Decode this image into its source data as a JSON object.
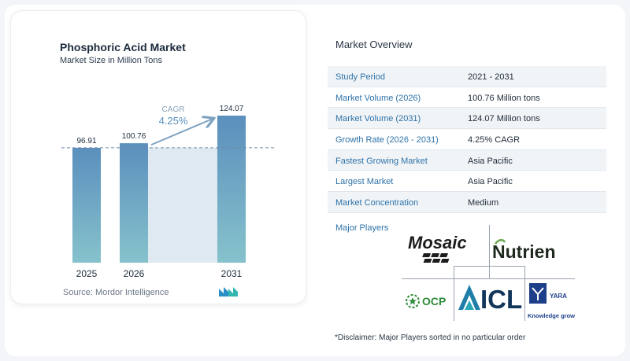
{
  "chart": {
    "title": "Phosphoric Acid Market",
    "subtitle": "Market Size in Million Tons",
    "source": "Source:  Mordor Intelligence",
    "cagr_label": "CAGR",
    "cagr_value": "4.25%"
  },
  "chart_data": {
    "type": "bar",
    "categories": [
      "2025",
      "2026",
      "2031"
    ],
    "values": [
      96.91,
      100.76,
      124.07
    ],
    "value_labels": [
      "96.91",
      "100.76",
      "124.07"
    ],
    "title": "Phosphoric Acid Market",
    "subtitle": "Market Size in Million Tons",
    "xlabel": "",
    "ylabel": "",
    "ylim": [
      0,
      124.07
    ],
    "grid": false,
    "colors": {
      "bar_top": "#5b8fbd",
      "bar_bottom": "#86c2cc",
      "band": "#dfe9f1",
      "arrow": "#7fa3c2"
    }
  },
  "overview": {
    "title": "Market Overview",
    "rows": [
      {
        "label": "Study Period",
        "value": "2021 - 2031"
      },
      {
        "label": "Market Volume (2026)",
        "value": "100.76 Million tons"
      },
      {
        "label": "Market Volume (2031)",
        "value": "124.07 Million tons"
      },
      {
        "label": "Growth Rate (2026 - 2031)",
        "value": "4.25% CAGR"
      },
      {
        "label": "Fastest Growing Market",
        "value": "Asia Pacific"
      },
      {
        "label": "Largest Market",
        "value": "Asia Pacific"
      },
      {
        "label": "Market Concentration",
        "value": "Medium"
      }
    ]
  },
  "players": {
    "title": "Major Players",
    "mosaic": "Mosaic",
    "nutrien": "Nutrien",
    "ocp": "OCP",
    "icl": "ICL",
    "yara": "YARA",
    "yara_tag": "Knowledge grows"
  },
  "disclaimer": "*Disclaimer: Major Players sorted in no particular order"
}
